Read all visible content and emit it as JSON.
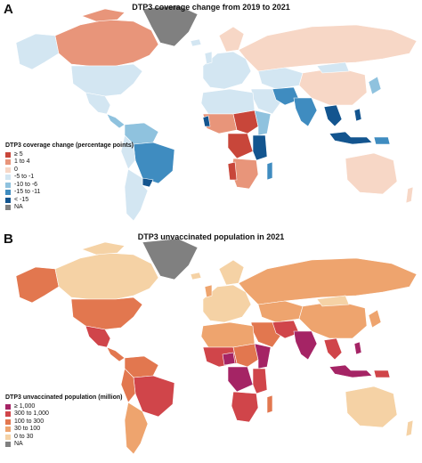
{
  "panels": [
    {
      "letter": "A",
      "title": "DTP3 coverage change from 2019 to 2021",
      "legend": {
        "title": "DTP3 coverage change (percentage points)",
        "items": [
          {
            "label": "≥ 5",
            "color": "#c8463a"
          },
          {
            "label": "1 to 4",
            "color": "#e8957a"
          },
          {
            "label": "0",
            "color": "#f7d7c6"
          },
          {
            "label": "-5 to -1",
            "color": "#d3e6f2"
          },
          {
            "label": "-10 to -6",
            "color": "#8fc2de"
          },
          {
            "label": "-15 to -11",
            "color": "#3f8cc0"
          },
          {
            "label": "< -15",
            "color": "#13558f"
          },
          {
            "label": "NA",
            "color": "#808080"
          }
        ]
      }
    },
    {
      "letter": "B",
      "title": "DTP3 unvaccinated population in 2021",
      "legend": {
        "title": "DTP3 unvaccinated population (million)",
        "items": [
          {
            "label": "≥ 1,000",
            "color": "#a52465"
          },
          {
            "label": "300 to 1,000",
            "color": "#d0454a"
          },
          {
            "label": "100 to 300",
            "color": "#e2774f"
          },
          {
            "label": "30 to 100",
            "color": "#eea46e"
          },
          {
            "label": "0 to 30",
            "color": "#f5d2a5"
          },
          {
            "label": "NA",
            "color": "#808080"
          }
        ]
      }
    }
  ]
}
